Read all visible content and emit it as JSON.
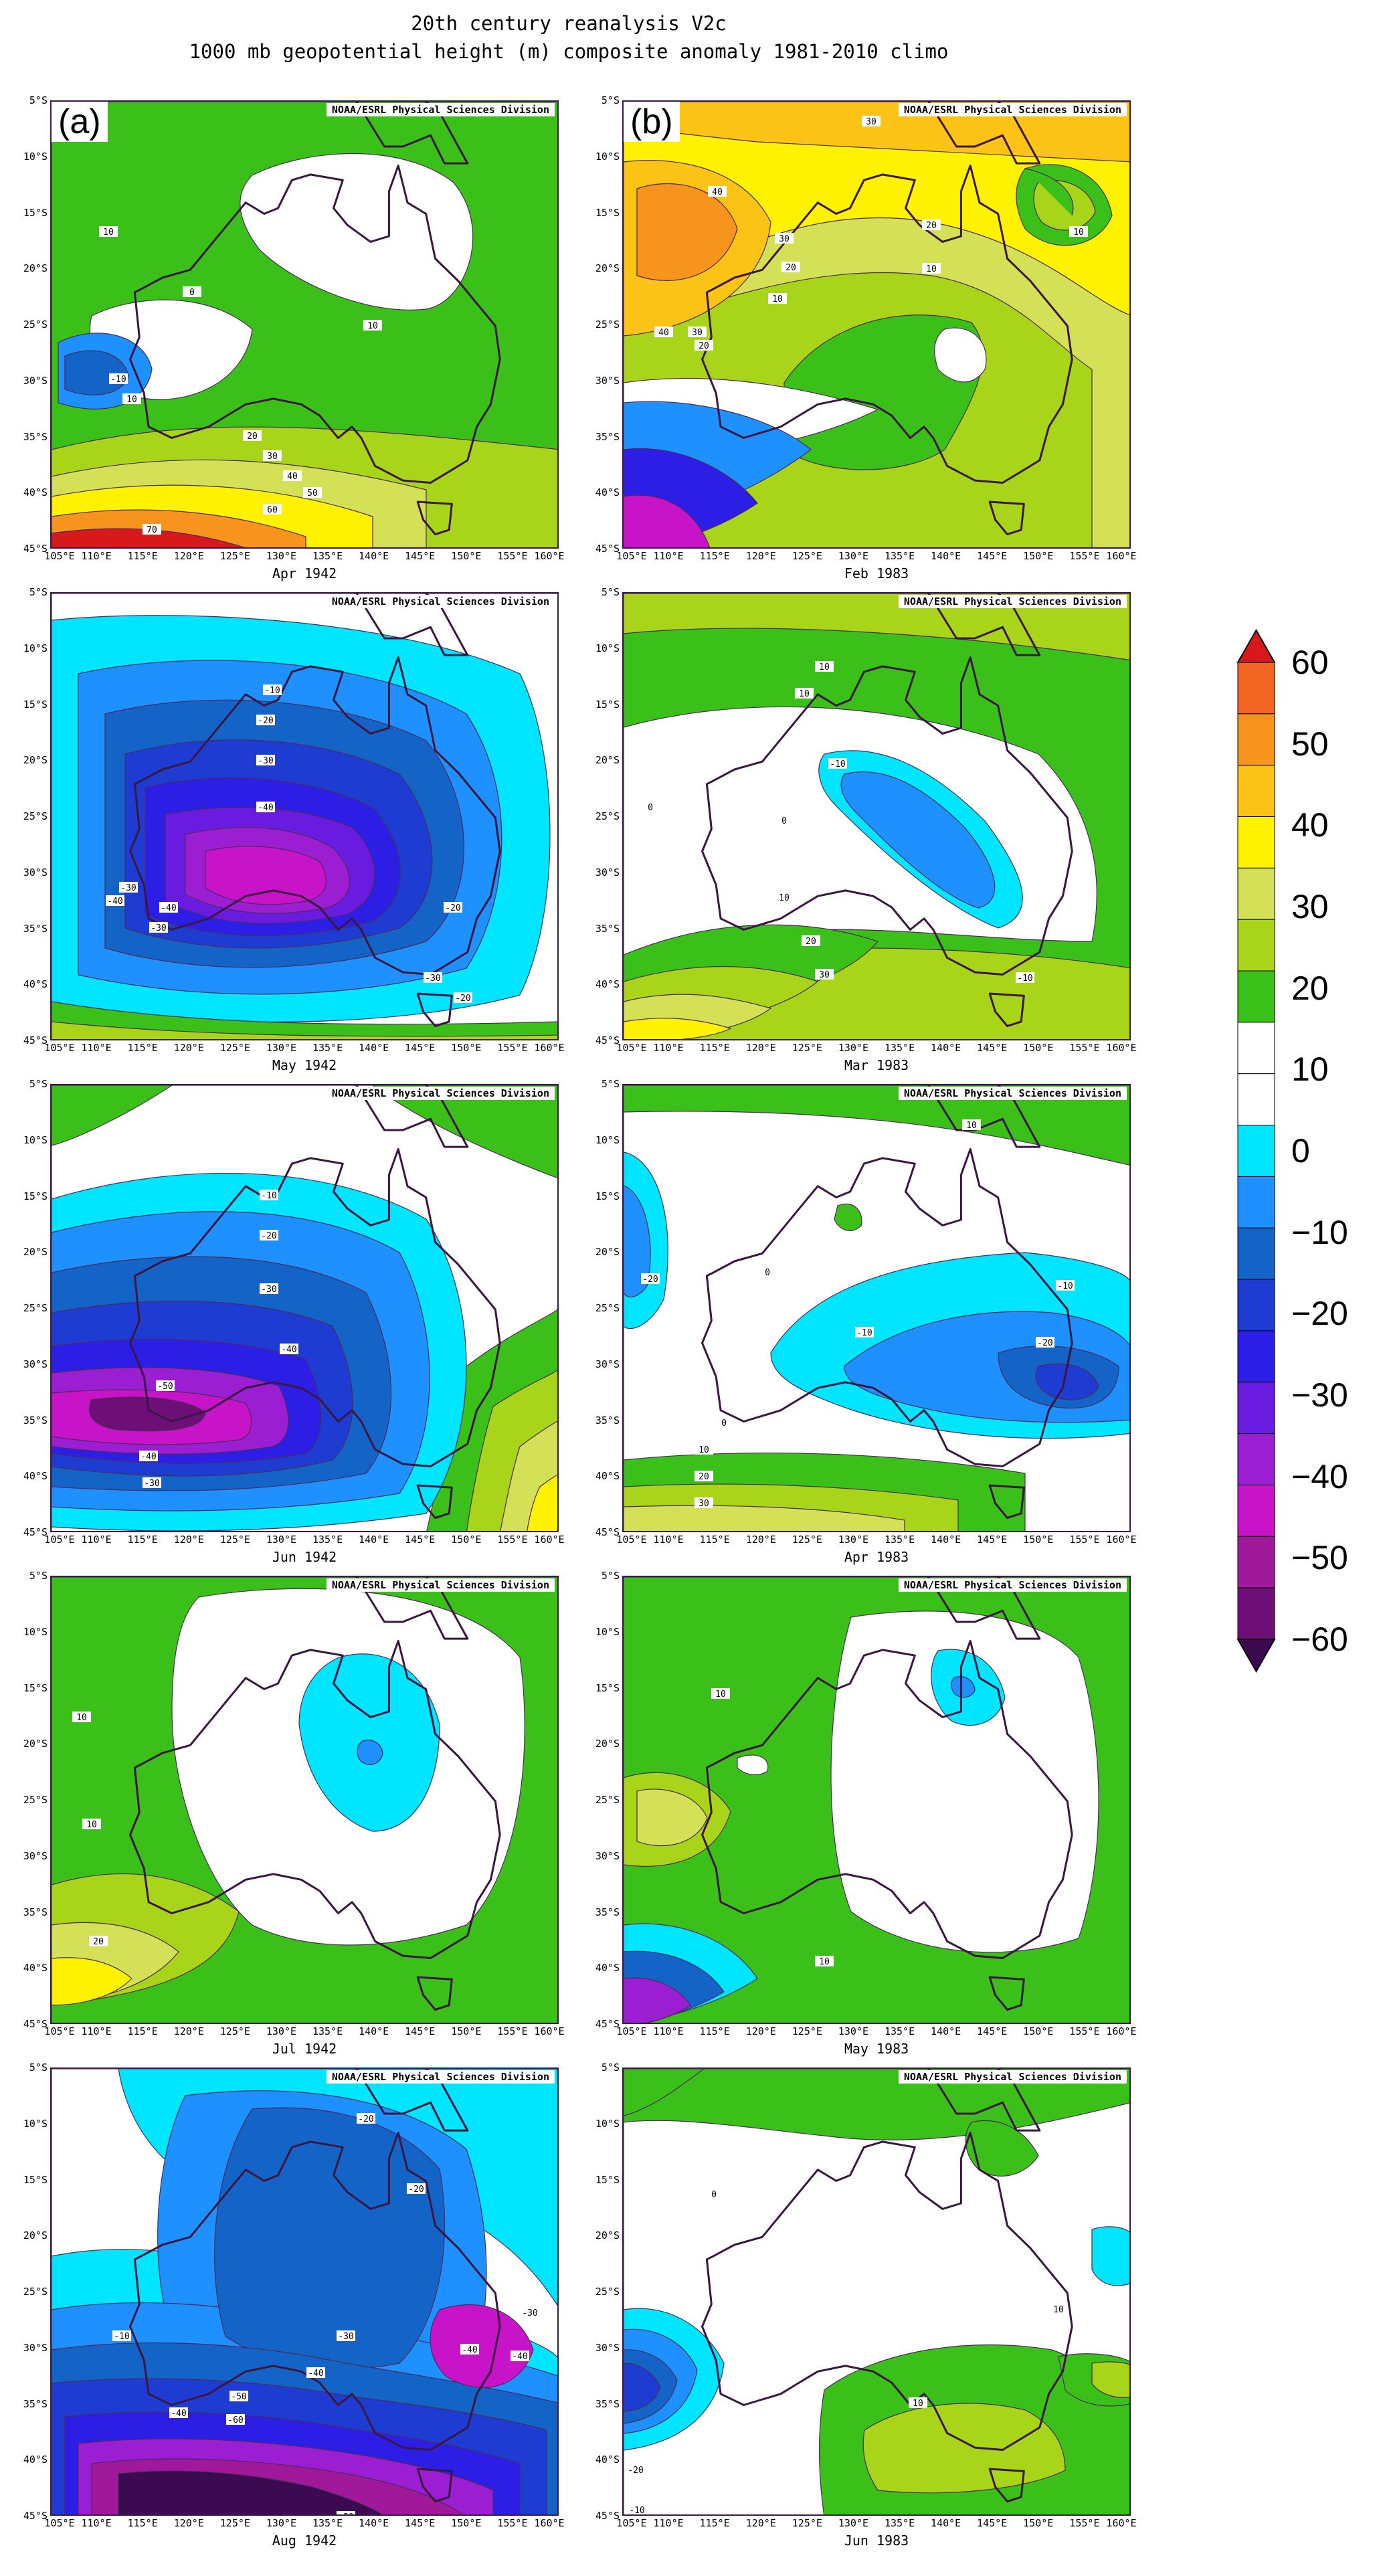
{
  "title": {
    "line1": "20th century reanalysis V2c",
    "line2": "1000 mb geopotential height (m) composite anomaly 1981-2010 climo"
  },
  "credit": "NOAA/ESRL Physical Sciences Division",
  "column_labels": [
    "(a)",
    "(b)"
  ],
  "lat_labels": [
    "5°S",
    "10°S",
    "15°S",
    "20°S",
    "25°S",
    "30°S",
    "35°S",
    "40°S",
    "45°S"
  ],
  "lon_labels": [
    "105°E",
    "110°E",
    "115°E",
    "120°E",
    "125°E",
    "130°E",
    "135°E",
    "140°E",
    "145°E",
    "150°E",
    "155°E",
    "160°E"
  ],
  "panels": [
    {
      "id": "a1",
      "date": "Apr 1942"
    },
    {
      "id": "b1",
      "date": "Feb 1983"
    },
    {
      "id": "a2",
      "date": "May 1942"
    },
    {
      "id": "b2",
      "date": "Mar 1983"
    },
    {
      "id": "a3",
      "date": "Jun 1942"
    },
    {
      "id": "b3",
      "date": "Apr 1983"
    },
    {
      "id": "a4",
      "date": "Jul 1942"
    },
    {
      "id": "b4",
      "date": "May 1983"
    },
    {
      "id": "a5",
      "date": "Aug 1942"
    },
    {
      "id": "b5",
      "date": "Jun 1983"
    }
  ],
  "colorbar": {
    "labels": [
      "60",
      "50",
      "40",
      "30",
      "20",
      "10",
      "0",
      "−10",
      "−20",
      "−30",
      "−40",
      "−50",
      "−60"
    ],
    "colors": [
      "#d7191c",
      "#f26522",
      "#f7941d",
      "#fbc315",
      "#fff200",
      "#d4e157",
      "#a8d51a",
      "#3bc01a",
      "#ffffff",
      "#ffffff",
      "#00e5ff",
      "#1e90ff",
      "#1464c8",
      "#1e3cd2",
      "#2d1ee6",
      "#6a1be0",
      "#9b1ed2",
      "#c814c8",
      "#a0199b",
      "#6e0f78",
      "#3c0a50"
    ]
  },
  "contour_labels": {
    "a1": [
      "10",
      "0",
      "10",
      "-10",
      "10",
      "20",
      "30",
      "40",
      "50",
      "60",
      "70"
    ],
    "b1": [
      "30",
      "20",
      "10",
      "40",
      "30",
      "20",
      "10",
      "40",
      "30",
      "20",
      "10"
    ],
    "a2": [
      "-10",
      "-20",
      "-30",
      "-40",
      "-30",
      "-40",
      "-30",
      "-40",
      "-20",
      "-30",
      "-20"
    ],
    "b2": [
      "10",
      "10",
      "0",
      "-10",
      "0",
      "10",
      "20",
      "30",
      "-10"
    ],
    "a3": [
      "-10",
      "-20",
      "-30",
      "-40",
      "-50",
      "-40",
      "-30"
    ],
    "b3": [
      "10",
      "-20",
      "0",
      "-10",
      "-10",
      "-20",
      "0",
      "10",
      "20",
      "30"
    ],
    "a4": [
      "10",
      "10",
      "20"
    ],
    "b4": [
      "10",
      "10"
    ],
    "a5": [
      "-20",
      "-10",
      "-20",
      "-30",
      "-40",
      "-50",
      "-60",
      "-40",
      "-30",
      "-40",
      "-40",
      "-20"
    ],
    "b5": [
      "0",
      "10",
      "10",
      "-20",
      "-10"
    ]
  }
}
